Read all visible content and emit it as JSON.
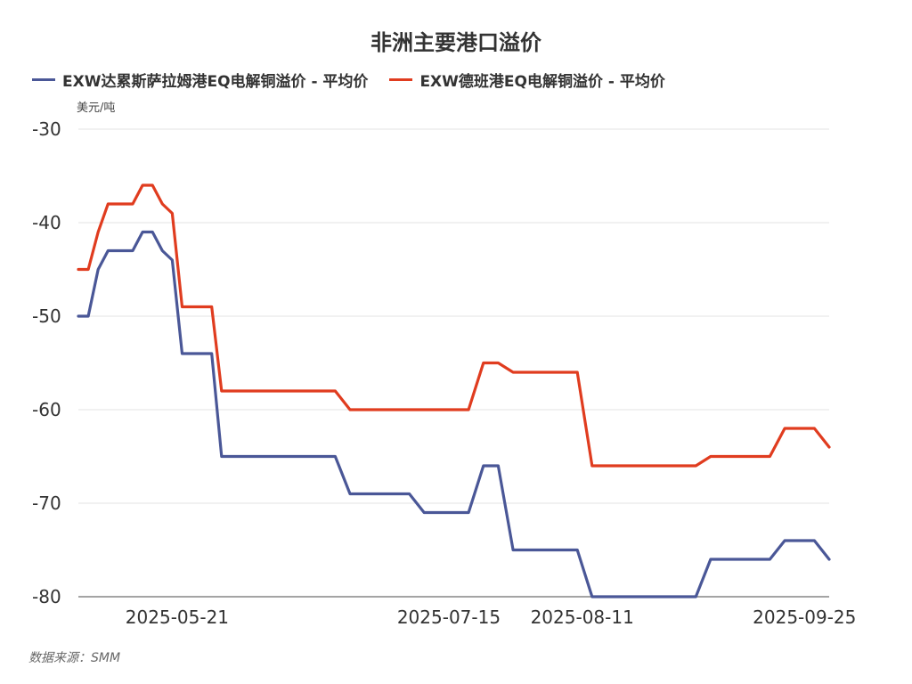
{
  "chart_data": {
    "type": "line",
    "title": "非洲主要港口溢价",
    "ylabel": "美元/吨",
    "xlabel": "",
    "ylim": [
      -80,
      -30
    ],
    "yticks": [
      -30,
      -40,
      -50,
      -60,
      -70,
      -80
    ],
    "xlim": [
      "2025-05-01",
      "2025-09-30"
    ],
    "xtick_labels": [
      {
        "date": "2025-05-21",
        "label": "2025-05-21"
      },
      {
        "date": "2025-07-15",
        "label": "2025-07-15"
      },
      {
        "date": "2025-08-11",
        "label": "2025-08-11"
      },
      {
        "date": "2025-09-25",
        "label": "2025-09-25"
      }
    ],
    "grid": true,
    "legend": "top-left",
    "series": [
      {
        "name": "EXW达累斯萨拉姆港EQ电解铜溢价 - 平均价",
        "color": "#4a5797",
        "points": [
          [
            "2025-05-01",
            -50
          ],
          [
            "2025-05-03",
            -50
          ],
          [
            "2025-05-05",
            -45
          ],
          [
            "2025-05-07",
            -43
          ],
          [
            "2025-05-12",
            -43
          ],
          [
            "2025-05-14",
            -41
          ],
          [
            "2025-05-16",
            -41
          ],
          [
            "2025-05-18",
            -43
          ],
          [
            "2025-05-20",
            -44
          ],
          [
            "2025-05-22",
            -54
          ],
          [
            "2025-05-28",
            -54
          ],
          [
            "2025-05-30",
            -65
          ],
          [
            "2025-06-22",
            -65
          ],
          [
            "2025-06-25",
            -69
          ],
          [
            "2025-07-07",
            -69
          ],
          [
            "2025-07-10",
            -71
          ],
          [
            "2025-07-19",
            -71
          ],
          [
            "2025-07-22",
            -66
          ],
          [
            "2025-07-25",
            -66
          ],
          [
            "2025-07-28",
            -75
          ],
          [
            "2025-08-10",
            -75
          ],
          [
            "2025-08-13",
            -80
          ],
          [
            "2025-09-03",
            -80
          ],
          [
            "2025-09-06",
            -76
          ],
          [
            "2025-09-18",
            -76
          ],
          [
            "2025-09-21",
            -74
          ],
          [
            "2025-09-27",
            -74
          ],
          [
            "2025-09-30",
            -76
          ]
        ]
      },
      {
        "name": "EXW德班港EQ电解铜溢价 - 平均价",
        "color": "#e03c1f",
        "points": [
          [
            "2025-05-01",
            -45
          ],
          [
            "2025-05-03",
            -45
          ],
          [
            "2025-05-05",
            -41
          ],
          [
            "2025-05-07",
            -38
          ],
          [
            "2025-05-12",
            -38
          ],
          [
            "2025-05-14",
            -36
          ],
          [
            "2025-05-16",
            -36
          ],
          [
            "2025-05-18",
            -38
          ],
          [
            "2025-05-20",
            -39
          ],
          [
            "2025-05-22",
            -49
          ],
          [
            "2025-05-28",
            -49
          ],
          [
            "2025-05-30",
            -58
          ],
          [
            "2025-06-22",
            -58
          ],
          [
            "2025-06-25",
            -60
          ],
          [
            "2025-07-19",
            -60
          ],
          [
            "2025-07-22",
            -55
          ],
          [
            "2025-07-25",
            -55
          ],
          [
            "2025-07-28",
            -56
          ],
          [
            "2025-08-10",
            -56
          ],
          [
            "2025-08-13",
            -66
          ],
          [
            "2025-09-03",
            -66
          ],
          [
            "2025-09-06",
            -65
          ],
          [
            "2025-09-18",
            -65
          ],
          [
            "2025-09-21",
            -62
          ],
          [
            "2025-09-27",
            -62
          ],
          [
            "2025-09-30",
            -64
          ]
        ]
      }
    ],
    "source": "数据来源：SMM"
  }
}
